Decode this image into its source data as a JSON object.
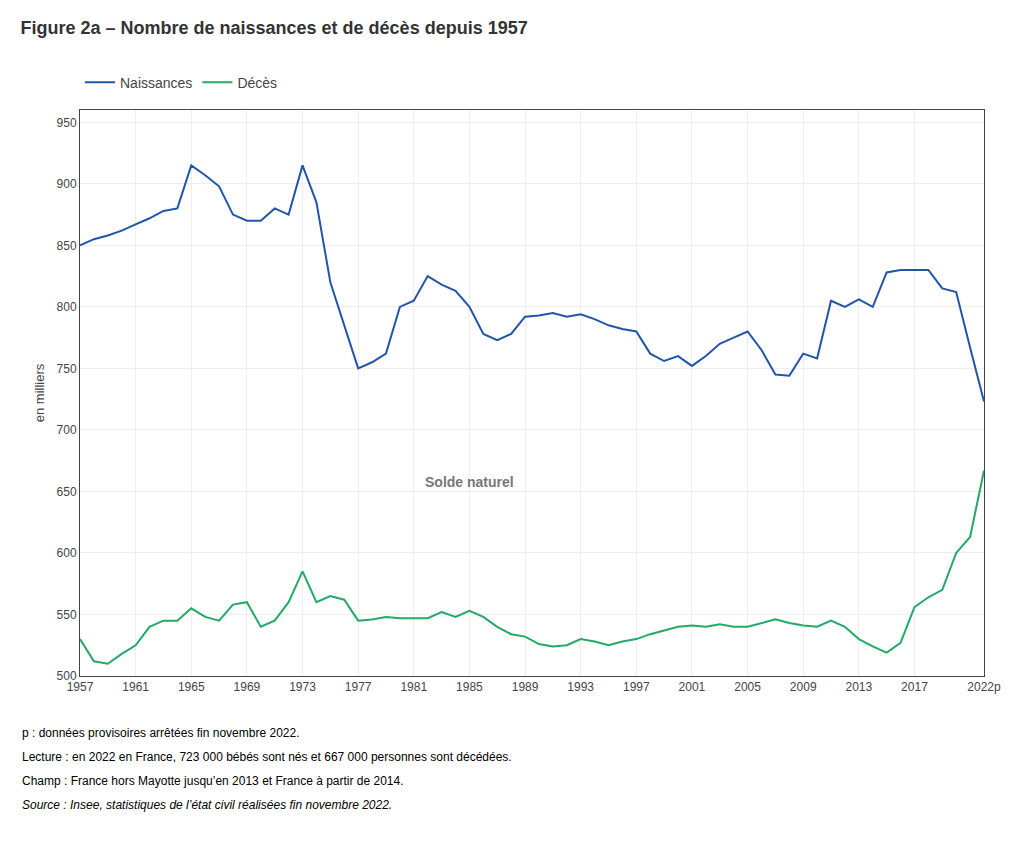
{
  "chart_data": {
    "type": "line",
    "title": "Figure 2a – Nombre de naissances et de décès depuis 1957",
    "ylabel": "en milliers",
    "x": [
      1957,
      1958,
      1959,
      1960,
      1961,
      1962,
      1963,
      1964,
      1965,
      1966,
      1967,
      1968,
      1969,
      1970,
      1971,
      1972,
      1973,
      1974,
      1975,
      1976,
      1977,
      1978,
      1979,
      1980,
      1981,
      1982,
      1983,
      1984,
      1985,
      1986,
      1987,
      1988,
      1989,
      1990,
      1991,
      1992,
      1993,
      1994,
      1995,
      1996,
      1997,
      1998,
      1999,
      2000,
      2001,
      2002,
      2003,
      2004,
      2005,
      2006,
      2007,
      2008,
      2009,
      2010,
      2011,
      2012,
      2013,
      2014,
      2015,
      2016,
      2017,
      2018,
      2019,
      2020,
      2021,
      2022
    ],
    "series": [
      {
        "name": "Naissances",
        "color": "#2255aa",
        "values": [
          850,
          855,
          858,
          862,
          867,
          872,
          878,
          880,
          915,
          907,
          898,
          875,
          870,
          870,
          880,
          875,
          915,
          885,
          820,
          785,
          750,
          755,
          762,
          800,
          805,
          825,
          818,
          813,
          800,
          778,
          773,
          778,
          792,
          793,
          795,
          792,
          794,
          790,
          785,
          782,
          780,
          762,
          756,
          760,
          752,
          760,
          770,
          775,
          780,
          765,
          745,
          744,
          762,
          758,
          805,
          800,
          806,
          800,
          828,
          830,
          830,
          830,
          815,
          812,
          767,
          723
        ]
      },
      {
        "name": "Décès",
        "color": "#22aa66",
        "values": [
          530,
          512,
          510,
          518,
          525,
          540,
          545,
          545,
          555,
          548,
          545,
          558,
          560,
          540,
          545,
          560,
          585,
          560,
          565,
          562,
          545,
          546,
          548,
          547,
          547,
          547,
          552,
          548,
          553,
          548,
          540,
          534,
          532,
          526,
          524,
          525,
          530,
          528,
          525,
          528,
          530,
          534,
          537,
          540,
          541,
          540,
          542,
          540,
          540,
          543,
          546,
          543,
          541,
          540,
          545,
          540,
          530,
          524,
          519,
          527,
          556,
          564,
          570,
          600,
          613,
          667
        ]
      }
    ],
    "xlim": [
      1957,
      2022
    ],
    "xticks": [
      1957,
      1961,
      1965,
      1969,
      1973,
      1977,
      1981,
      1985,
      1989,
      1993,
      1997,
      2001,
      2005,
      2009,
      2013,
      2017,
      {
        "value": 2022,
        "label": "2022p"
      }
    ],
    "ylim": [
      500,
      960
    ],
    "yticks": [
      500,
      550,
      600,
      650,
      700,
      750,
      800,
      850,
      900,
      950
    ],
    "grid": true,
    "legend": "top left",
    "annotations": [
      {
        "text": "Solde naturel",
        "x": 1985,
        "y": 658
      }
    ],
    "footnotes": [
      "p : données provisoires arrêtées fin novembre 2022.",
      "Lecture : en 2022 en France, 723 000 bébés sont nés et 667 000 personnes sont décédées.",
      "Champ : France hors Mayotte jusqu’en 2013 et France à partir de 2014.",
      "Source : Insee, statistiques de l’état civil réalisées fin novembre 2022."
    ]
  }
}
